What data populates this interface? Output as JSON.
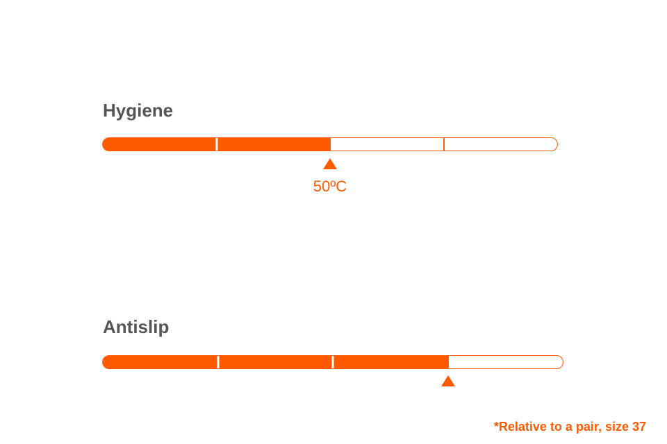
{
  "colors": {
    "accent": "#ff5a00",
    "title": "#555555",
    "background": "#ffffff"
  },
  "metrics": [
    {
      "title": "Hygiene",
      "segments": 4,
      "filled_segments": 2,
      "level_fraction": 0.5,
      "marker_label": "50ºC"
    },
    {
      "title": "Antislip",
      "segments": 4,
      "filled_segments": 3,
      "level_fraction": 0.75,
      "marker_label": ""
    }
  ],
  "footnote": "*Relative to a pair, size 37"
}
